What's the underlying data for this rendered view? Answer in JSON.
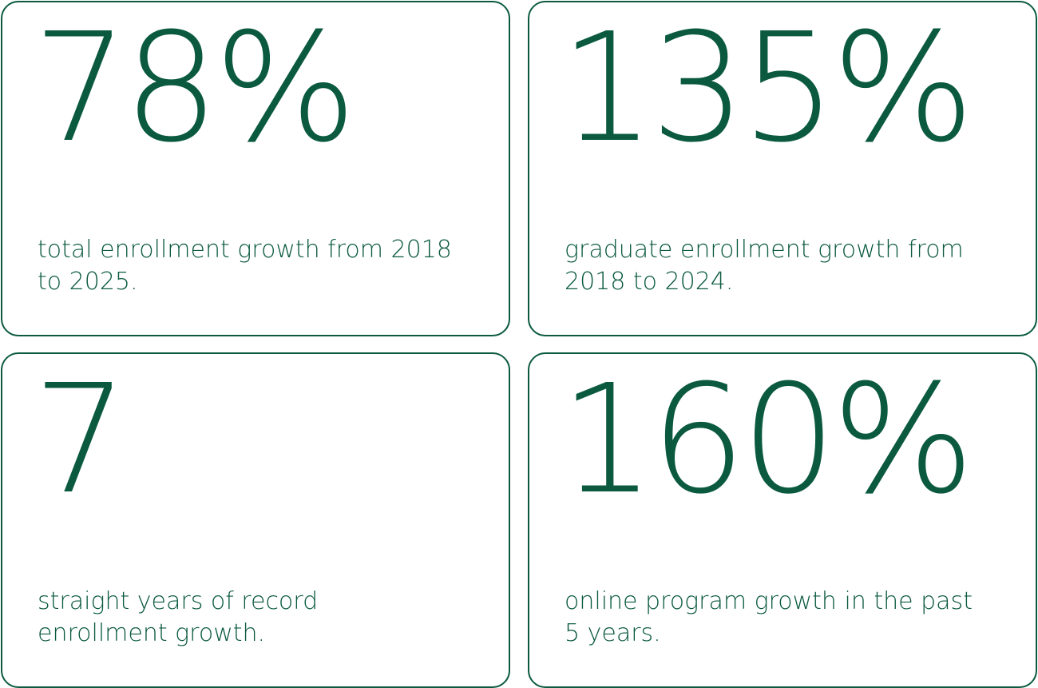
{
  "stats": [
    {
      "value": "78%",
      "description": "total enrollment growth from 2018 to 2025."
    },
    {
      "value": "135%",
      "description": "graduate enrollment growth from 2018 to 2024."
    },
    {
      "value": "7",
      "description": "straight years of record enrollment growth."
    },
    {
      "value": "160%",
      "description": "online program growth in the past 5 years."
    }
  ],
  "colors": {
    "accent": "#0b5a3f",
    "background": "#ffffff"
  }
}
